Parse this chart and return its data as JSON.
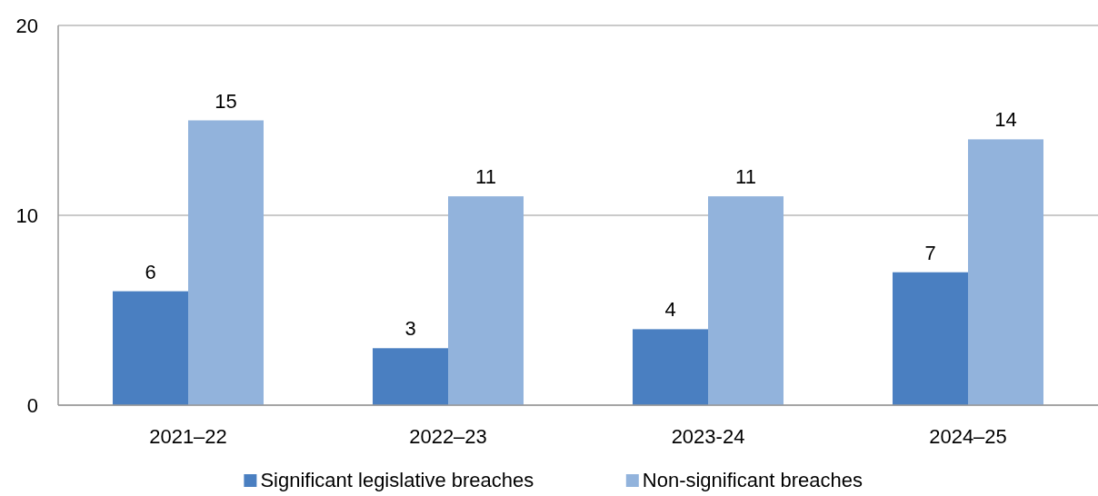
{
  "chart_data": {
    "type": "bar",
    "categories": [
      "2021–22",
      "2022–23",
      "2023-24",
      "2024–25"
    ],
    "series": [
      {
        "name": "Significant legislative breaches",
        "color": "#4a7fc1",
        "values": [
          6,
          3,
          4,
          7
        ]
      },
      {
        "name": "Non-significant breaches",
        "color": "#92b3dc",
        "values": [
          15,
          11,
          11,
          14
        ]
      }
    ],
    "ylim": [
      0,
      20
    ],
    "yticks": [
      0,
      10,
      20
    ],
    "grid": "y",
    "legend": "bottom",
    "data_labels": true
  }
}
